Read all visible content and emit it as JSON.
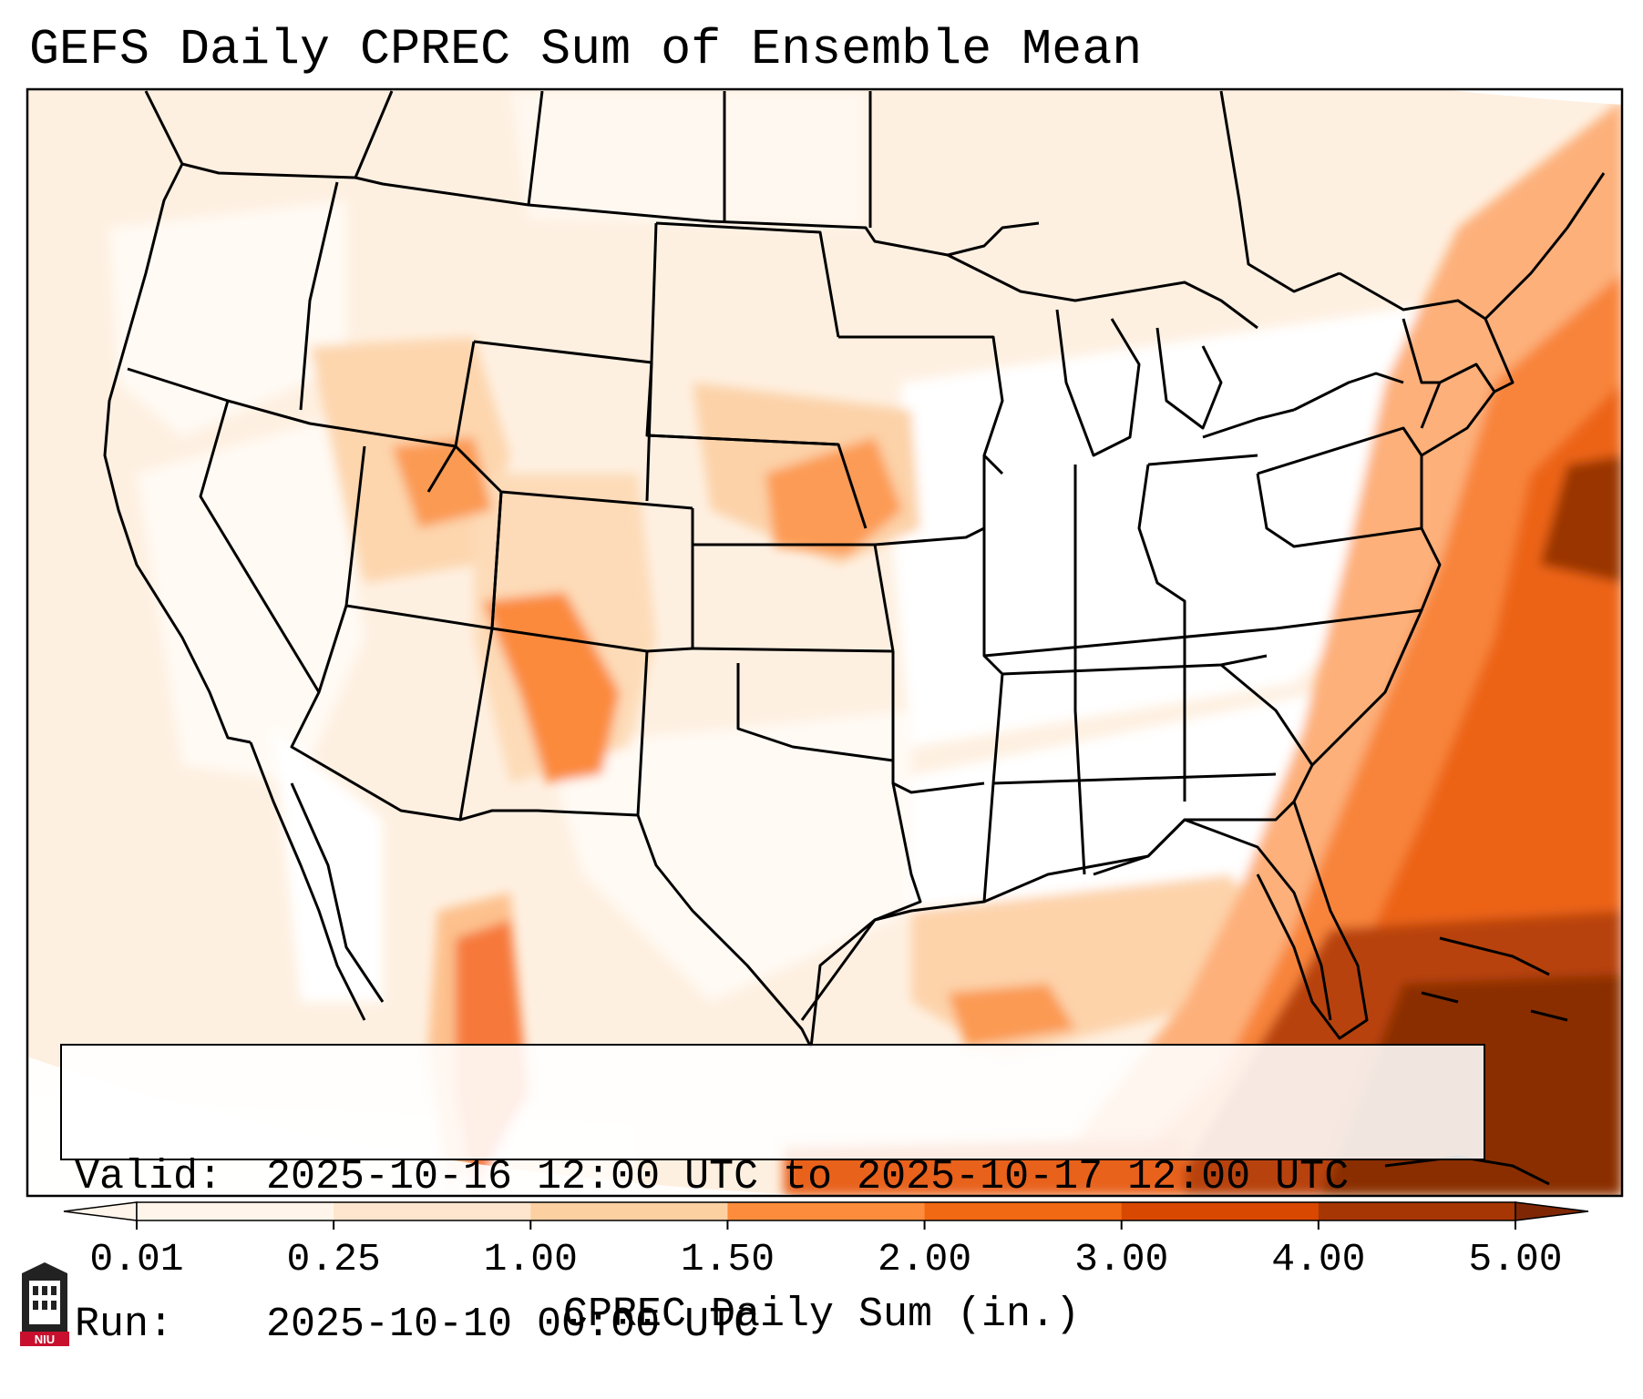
{
  "title": "GEFS Daily CPREC Sum of Ensemble Mean",
  "info": {
    "valid_label": "Valid:",
    "valid_value": "2025-10-16 12:00 UTC to 2025-10-17 12:00 UTC",
    "run_label": "Run:",
    "run_value": "2025-10-10 00:00 UTC"
  },
  "colorbar": {
    "ticks": [
      "0.01",
      "0.25",
      "1.00",
      "1.50",
      "2.00",
      "3.00",
      "4.00",
      "5.00"
    ],
    "colors": [
      "#fff5eb",
      "#fee6ce",
      "#fdd0a2",
      "#fd8d3c",
      "#f16913",
      "#d94801",
      "#a63603",
      "#7f2704"
    ],
    "title": "CPREC Daily Sum (in.)"
  },
  "logo": {
    "text": "NIU",
    "color": "#c8102e"
  }
}
